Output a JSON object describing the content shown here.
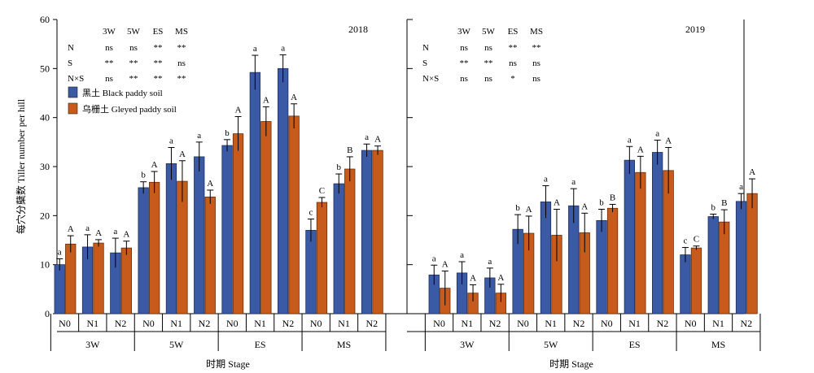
{
  "chart_data": {
    "type": "bar",
    "ylabel": "每穴分蘖数 Tiller number per hill",
    "xlabel": "时期 Stage",
    "ylim": [
      0,
      60
    ],
    "yticks": [
      0,
      10,
      20,
      30,
      40,
      50,
      60
    ],
    "stages": [
      "3W",
      "5W",
      "ES",
      "MS"
    ],
    "treatments": [
      "N0",
      "N1",
      "N2"
    ],
    "legend": {
      "placement": "top-left",
      "items": [
        {
          "name": "黑土 Black paddy soil",
          "color": "#3b5aa6"
        },
        {
          "name": "乌栅土 Gleyed paddy soil",
          "color": "#c65b1c"
        }
      ]
    },
    "panels": [
      {
        "year": "2018",
        "black_soil": [
          10,
          13.6,
          12.4,
          25.7,
          30.6,
          32.0,
          34.3,
          49.2,
          50.0,
          17.0,
          26.5,
          33.3
        ],
        "gleyed_soil": [
          14.2,
          14.4,
          13.4,
          26.8,
          27.0,
          23.8,
          36.7,
          39.2,
          40.3,
          22.7,
          29.5,
          33.3
        ],
        "black_err": [
          1.2,
          2.5,
          3.0,
          1.2,
          3.3,
          3.0,
          1.2,
          3.5,
          2.8,
          2.3,
          2.0,
          1.3
        ],
        "gleyed_err": [
          1.7,
          0.7,
          1.4,
          2.2,
          4.2,
          1.4,
          3.5,
          3.0,
          2.5,
          1.0,
          2.5,
          0.9
        ],
        "black_letters": [
          "a",
          "a",
          "a",
          "b",
          "a",
          "a",
          "b",
          "a",
          "a",
          "c",
          "b",
          "a"
        ],
        "gleyed_letters": [
          "A",
          "A",
          "A",
          "A",
          "A",
          "A",
          "A",
          "A",
          "A",
          "C",
          "B",
          "A"
        ],
        "significance": {
          "headers": [
            "3W",
            "5W",
            "ES",
            "MS"
          ],
          "rows": [
            {
              "label": "N",
              "values": [
                "ns",
                "ns",
                "**",
                "**"
              ]
            },
            {
              "label": "S",
              "values": [
                "**",
                "**",
                "**",
                "ns"
              ]
            },
            {
              "label": "N×S",
              "values": [
                "ns",
                "**",
                "**",
                "**"
              ]
            }
          ]
        }
      },
      {
        "year": "2019",
        "black_soil": [
          7.9,
          8.3,
          7.3,
          17.2,
          22.8,
          22.0,
          19.0,
          31.3,
          32.9,
          12.0,
          19.8,
          22.9
        ],
        "gleyed_soil": [
          5.2,
          4.2,
          4.2,
          16.4,
          16.0,
          16.5,
          21.5,
          28.8,
          29.2,
          13.4,
          18.7,
          24.5
        ],
        "black_err": [
          2.0,
          2.3,
          2.0,
          3.0,
          3.3,
          3.5,
          2.3,
          2.8,
          2.5,
          1.5,
          0.5,
          1.6
        ],
        "gleyed_err": [
          3.5,
          1.7,
          1.8,
          3.5,
          5.3,
          4.0,
          0.8,
          3.3,
          4.7,
          0.4,
          2.5,
          3.0
        ],
        "black_letters": [
          "a",
          "a",
          "a",
          "b",
          "a",
          "a",
          "b",
          "a",
          "a",
          "c",
          "b",
          "a"
        ],
        "gleyed_letters": [
          "A",
          "A",
          "A",
          "A",
          "A",
          "A",
          "B",
          "A",
          "A",
          "C",
          "B",
          "A"
        ],
        "significance": {
          "headers": [
            "3W",
            "5W",
            "ES",
            "MS"
          ],
          "rows": [
            {
              "label": "N",
              "values": [
                "ns",
                "ns",
                "**",
                "**"
              ]
            },
            {
              "label": "S",
              "values": [
                "**",
                "**",
                "ns",
                "ns"
              ]
            },
            {
              "label": "N×S",
              "values": [
                "ns",
                "ns",
                "*",
                "ns"
              ]
            }
          ]
        }
      }
    ]
  }
}
